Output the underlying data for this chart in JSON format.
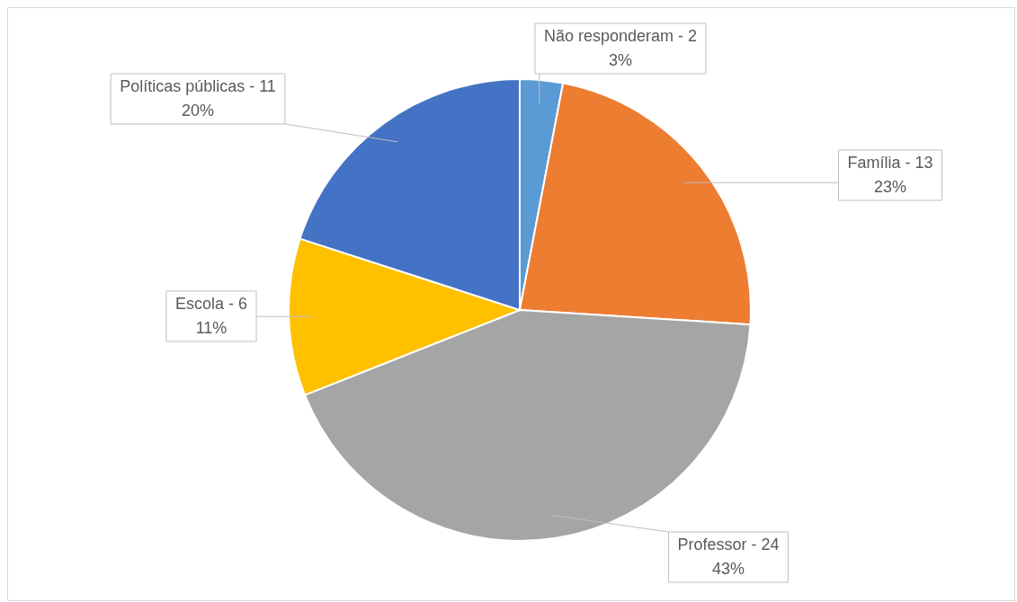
{
  "chart_data": {
    "type": "pie",
    "categories": [
      "Não responderam - 2",
      "Família - 13",
      "Professor - 24",
      "Escola - 6",
      "Políticas públicas - 11"
    ],
    "values": [
      3,
      23,
      43,
      11,
      20
    ],
    "colors": [
      "#5b9bd5",
      "#ed7d31",
      "#a5a5a5",
      "#ffc000",
      "#4472c4"
    ],
    "value_labels": [
      "3%",
      "23%",
      "43%",
      "11%",
      "20%"
    ],
    "legend": false
  }
}
